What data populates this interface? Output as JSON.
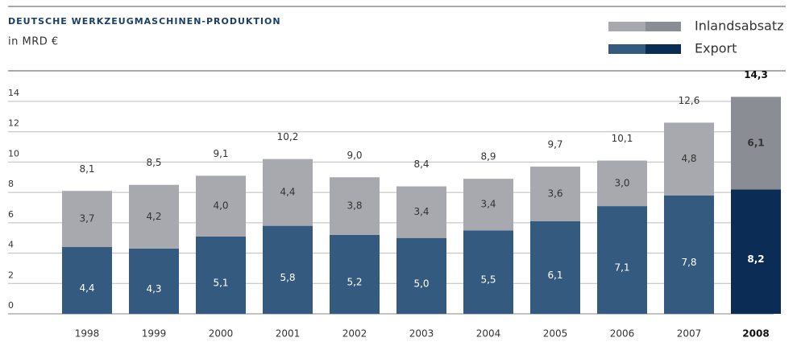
{
  "chart_data": {
    "type": "stacked_bar",
    "title": "DEUTSCHE WERKZEUGMASCHINEN-PRODUKTION",
    "subtitle": "in MRD €",
    "categories": [
      "1998",
      "1999",
      "2000",
      "2001",
      "2002",
      "2003",
      "2004",
      "2005",
      "2006",
      "2007",
      "2008"
    ],
    "series": [
      {
        "name": "Export",
        "color": "#345a80",
        "highlight_color": "#0b2d55",
        "values": [
          4.4,
          4.3,
          5.1,
          5.8,
          5.2,
          5.0,
          5.5,
          6.1,
          7.1,
          7.8,
          8.2
        ],
        "value_labels": [
          "4,4",
          "4,3",
          "5,1",
          "5,8",
          "5,2",
          "5,0",
          "5,5",
          "6,1",
          "7,1",
          "7,8",
          "8,2"
        ]
      },
      {
        "name": "Inlandsabsatz",
        "color": "#a7a9ae",
        "highlight_color": "#8a8d94",
        "values": [
          3.7,
          4.2,
          4.0,
          4.4,
          3.8,
          3.4,
          3.4,
          3.6,
          3.0,
          4.8,
          6.1
        ],
        "value_labels": [
          "3,7",
          "4,2",
          "4,0",
          "4,4",
          "3,8",
          "3,4",
          "3,4",
          "3,6",
          "3,0",
          "4,8",
          "6,1"
        ]
      }
    ],
    "totals": [
      8.1,
      8.5,
      9.1,
      10.2,
      9.0,
      8.4,
      8.9,
      9.7,
      10.1,
      12.6,
      14.3
    ],
    "total_labels": [
      "8,1",
      "8,5",
      "9,1",
      "10,2",
      "9,0",
      "8,4",
      "8,9",
      "9,7",
      "10,1",
      "12,6",
      "14,3"
    ],
    "highlight_category": "2008",
    "ylim": [
      0,
      14
    ],
    "yticks": [
      0,
      2,
      4,
      6,
      8,
      10,
      12,
      14
    ],
    "grid": true
  }
}
